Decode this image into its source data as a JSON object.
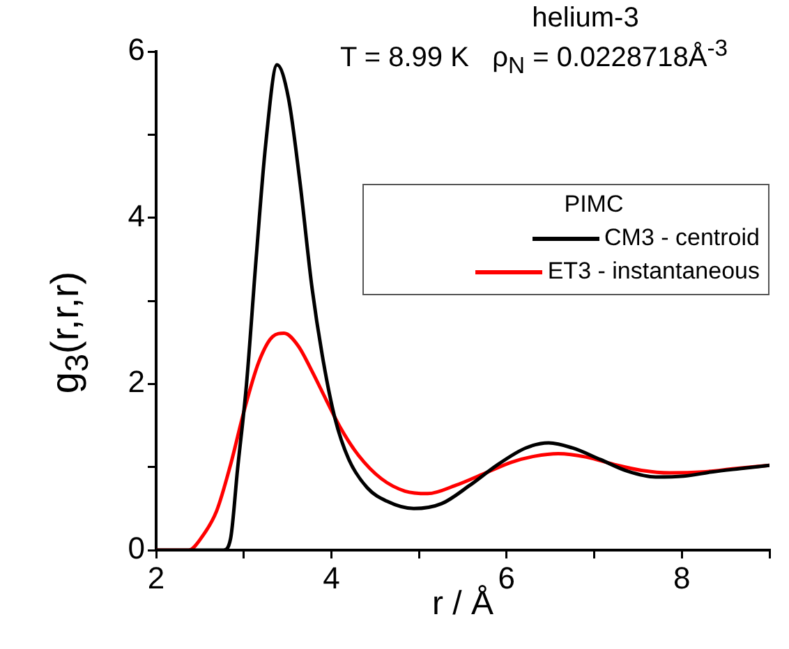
{
  "chart_data": {
    "type": "line",
    "title": "helium-3",
    "subtitle": "T = 8.99 K   ρ$_{N}$ = 0.0228718Å$^{-3}$",
    "xlabel": "r / Å",
    "ylabel": "g$_{3}$(r,r,r)",
    "legend_title": "PIMC",
    "legend": "top right",
    "marker": "none",
    "line_style": "solid",
    "xlim": [
      2,
      9
    ],
    "ylim": [
      0,
      6
    ],
    "xticks": [
      2,
      {
        "value": 3,
        "label": null
      },
      4,
      {
        "value": 5,
        "label": null
      },
      6,
      {
        "value": 7,
        "label": null
      },
      8,
      {
        "value": 9,
        "label": null
      }
    ],
    "yticks": [
      0,
      {
        "value": 1,
        "label": null
      },
      2,
      {
        "value": 3,
        "label": null
      },
      4,
      {
        "value": 5,
        "label": null
      },
      6
    ],
    "series": [
      {
        "name": "CM3 - centroid",
        "color": "#000000",
        "x": [
          2,
          2.77,
          2.85,
          2.93,
          3.03,
          3.14,
          3.25,
          3.38,
          3.51,
          3.64,
          3.78,
          3.91,
          4.04,
          4.2,
          4.41,
          4.63,
          4.94,
          5.26,
          5.58,
          5.9,
          6.22,
          6.48,
          6.75,
          7.07,
          7.38,
          7.7,
          8.02,
          8.34,
          8.66,
          9
        ],
        "values": [
          0,
          0,
          0.14,
          0.98,
          1.98,
          3.49,
          4.88,
          5.84,
          5.44,
          4.44,
          3.15,
          2.26,
          1.59,
          1.09,
          0.75,
          0.59,
          0.5,
          0.56,
          0.78,
          1.03,
          1.23,
          1.29,
          1.23,
          1.09,
          0.95,
          0.88,
          0.89,
          0.94,
          0.98,
          1.02
        ]
      },
      {
        "name": "ET3 - instantaneous",
        "color": "#ff0000",
        "x": [
          2,
          2.37,
          2.53,
          2.69,
          2.85,
          3.01,
          3.17,
          3.33,
          3.46,
          3.62,
          3.78,
          3.94,
          4.1,
          4.31,
          4.57,
          4.84,
          5.1,
          5.42,
          5.74,
          6.06,
          6.32,
          6.59,
          6.91,
          7.23,
          7.54,
          7.86,
          8.23,
          8.6,
          9
        ],
        "values": [
          0,
          0,
          0.17,
          0.47,
          1.03,
          1.7,
          2.26,
          2.57,
          2.61,
          2.46,
          2.15,
          1.81,
          1.48,
          1.14,
          0.86,
          0.71,
          0.68,
          0.78,
          0.92,
          1.06,
          1.13,
          1.16,
          1.12,
          1.03,
          0.96,
          0.93,
          0.94,
          0.98,
          1.02
        ]
      }
    ]
  }
}
